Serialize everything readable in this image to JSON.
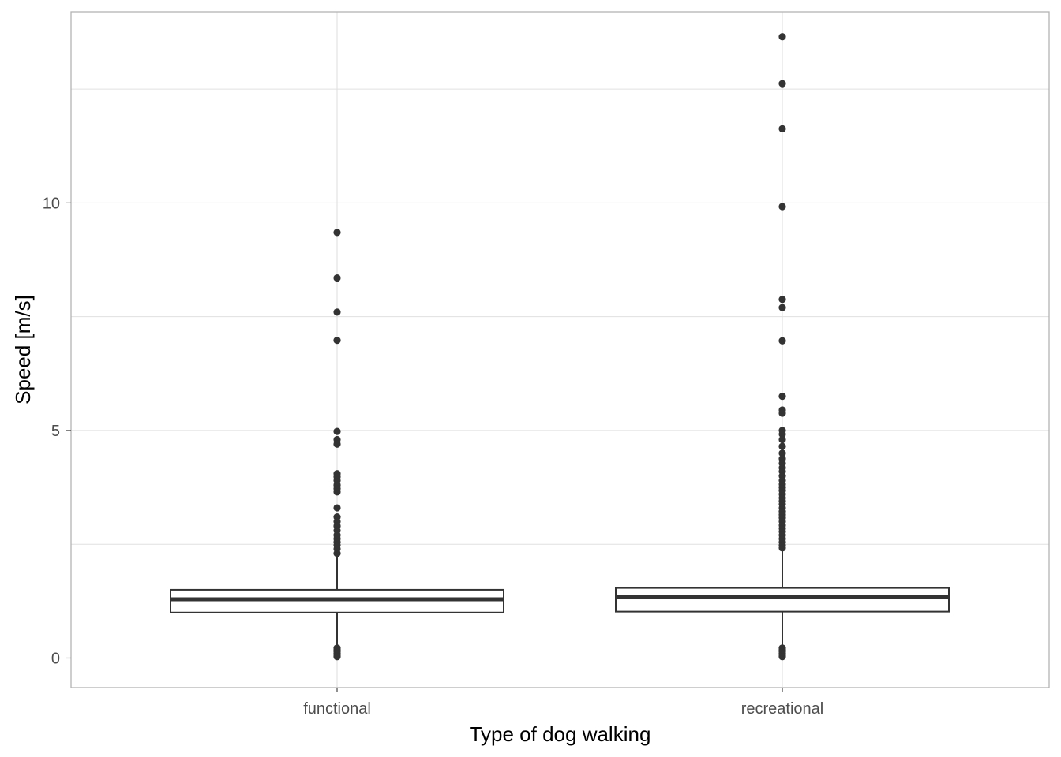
{
  "chart_data": {
    "type": "boxplot",
    "title": "",
    "xlabel": "Type of dog walking",
    "ylabel": "Speed [m/s]",
    "ylim": [
      -0.65,
      14.2
    ],
    "y_ticks": [
      0,
      5,
      10
    ],
    "y_tick_labels": [
      "0",
      "5",
      "10"
    ],
    "grid": true,
    "categories": [
      "functional",
      "recreational"
    ],
    "boxes": [
      {
        "category": "functional",
        "min": 0.0,
        "q1": 1.0,
        "median": 1.29,
        "q3": 1.5,
        "max": 2.25,
        "outliers": [
          9.35,
          8.35,
          7.6,
          6.98,
          4.98,
          4.8,
          4.7,
          4.05,
          3.98,
          3.9,
          3.8,
          3.72,
          3.65,
          3.3,
          3.1,
          3.0,
          2.9,
          2.8,
          2.7,
          2.62,
          2.55,
          2.48,
          2.4,
          2.3,
          0.22,
          0.18,
          0.14,
          0.1,
          0.06,
          0.03
        ]
      },
      {
        "category": "recreational",
        "min": 0.0,
        "q1": 1.02,
        "median": 1.35,
        "q3": 1.54,
        "max": 2.35,
        "outliers": [
          13.65,
          12.62,
          11.63,
          9.92,
          7.88,
          7.7,
          6.97,
          5.75,
          5.45,
          5.38,
          5.0,
          4.92,
          4.8,
          4.65,
          4.5,
          4.38,
          4.28,
          4.18,
          4.1,
          4.0,
          3.9,
          3.82,
          3.75,
          3.68,
          3.6,
          3.52,
          3.45,
          3.38,
          3.3,
          3.22,
          3.15,
          3.08,
          3.0,
          2.92,
          2.85,
          2.78,
          2.7,
          2.62,
          2.55,
          2.48,
          2.42,
          0.22,
          0.18,
          0.14,
          0.1,
          0.06,
          0.03
        ]
      }
    ],
    "colors": {
      "box_stroke": "#333333",
      "box_fill": "#ffffff",
      "outlier": "#333333",
      "grid": "#e0e0e0",
      "panel_border": "#b3b3b3",
      "tick_text": "#4d4d4d",
      "title_text": "#000000"
    }
  }
}
